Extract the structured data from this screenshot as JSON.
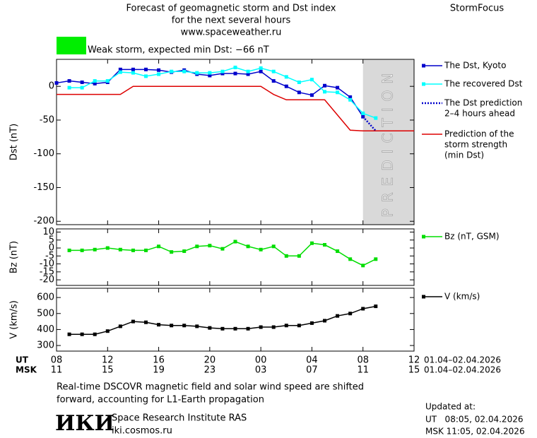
{
  "header": {
    "title_lines": [
      "Forecast of geomagnetic storm and Dst index",
      "for the next several hours",
      "www.spaceweather.ru"
    ],
    "brand": "StormFocus",
    "storm_label": "Weak storm, expected min Dst: −66 nT",
    "storm_color": "#00ee00"
  },
  "chart_data": [
    {
      "type": "line",
      "ylabel": "Dst (nT)",
      "xlim": [
        0,
        28
      ],
      "ylim": [
        -205,
        40
      ],
      "yticks": [
        0,
        -50,
        -100,
        -150,
        -200
      ],
      "shade": {
        "x": [
          24,
          28
        ],
        "label": "PREDICTION",
        "color": "#d9d9d9"
      },
      "series": [
        {
          "name": "The Dst, Kyoto",
          "color": "#0000cc",
          "marker": "square",
          "style": "solid",
          "x": [
            0,
            1,
            2,
            3,
            4,
            5,
            6,
            7,
            8,
            9,
            10,
            11,
            12,
            13,
            14,
            15,
            16,
            17,
            18,
            19,
            20,
            21,
            22,
            23,
            24
          ],
          "values": [
            5,
            8,
            6,
            4,
            6,
            25,
            25,
            25,
            24,
            21,
            24,
            18,
            16,
            19,
            19,
            18,
            22,
            8,
            0,
            -9,
            -13,
            1,
            -2,
            -16,
            -45
          ]
        },
        {
          "name": "The recovered Dst",
          "color": "#00ffff",
          "marker": "square",
          "style": "solid",
          "x": [
            1,
            2,
            3,
            4,
            5,
            6,
            7,
            8,
            9,
            10,
            11,
            12,
            13,
            14,
            15,
            16,
            17,
            18,
            19,
            20,
            21,
            22,
            23,
            24,
            25
          ],
          "values": [
            -2,
            -2,
            8,
            8,
            21,
            20,
            15,
            18,
            22,
            22,
            20,
            20,
            22,
            28,
            22,
            27,
            22,
            14,
            6,
            10,
            -8,
            -9,
            -20,
            -40,
            -47
          ]
        },
        {
          "name": [
            "The Dst prediction",
            "2–4 hours ahead"
          ],
          "color": "#0000cc",
          "marker": "none",
          "style": "dotted",
          "x": [
            24,
            25
          ],
          "values": [
            -45,
            -66
          ]
        },
        {
          "name": [
            "Prediction of the",
            "storm strength",
            "(min Dst)"
          ],
          "color": "#dd0000",
          "marker": "none",
          "style": "solid",
          "x": [
            0,
            5,
            6,
            16,
            17,
            18,
            21,
            23,
            24,
            28
          ],
          "values": [
            -12,
            -12,
            0,
            0,
            -12,
            -20,
            -20,
            -65,
            -66,
            -66
          ]
        }
      ]
    },
    {
      "type": "line",
      "ylabel": "Bz (nT)",
      "xlim": [
        0,
        28
      ],
      "ylim": [
        -23.5,
        12
      ],
      "yticks": [
        10,
        5,
        0,
        -5,
        -10,
        -15,
        -20
      ],
      "series": [
        {
          "name": "Bz (nT, GSM)",
          "color": "#00dd00",
          "marker": "square",
          "style": "solid",
          "x": [
            1,
            2,
            3,
            4,
            5,
            6,
            7,
            8,
            9,
            10,
            11,
            12,
            13,
            14,
            15,
            16,
            17,
            18,
            19,
            20,
            21,
            22,
            23,
            24,
            25
          ],
          "values": [
            -1.5,
            -1.5,
            -1,
            0,
            -1,
            -1.5,
            -1.5,
            1,
            -2.5,
            -2,
            1,
            1.5,
            -0.5,
            4,
            1,
            -1,
            1,
            -5,
            -5,
            3,
            2,
            -2,
            -7,
            -11,
            -7
          ]
        }
      ]
    },
    {
      "type": "line",
      "ylabel": "V (km/s)",
      "xlim": [
        0,
        28
      ],
      "ylim": [
        265,
        658
      ],
      "yticks": [
        300,
        400,
        500,
        600
      ],
      "xticks": [
        {
          "value": 0,
          "label": "08"
        },
        {
          "value": 4,
          "label": "12"
        },
        {
          "value": 8,
          "label": "16"
        },
        {
          "value": 12,
          "label": "20"
        },
        {
          "value": 16,
          "label": "00"
        },
        {
          "value": 20,
          "label": "04"
        },
        {
          "value": 24,
          "label": "08"
        },
        {
          "value": 28,
          "label": "12"
        }
      ],
      "xticks_msk": [
        {
          "value": 0,
          "label": "11"
        },
        {
          "value": 4,
          "label": "15"
        },
        {
          "value": 8,
          "label": "19"
        },
        {
          "value": 12,
          "label": "23"
        },
        {
          "value": 16,
          "label": "03"
        },
        {
          "value": 20,
          "label": "07"
        },
        {
          "value": 24,
          "label": "11"
        },
        {
          "value": 28,
          "label": "15"
        }
      ],
      "xlabel_ut": "UT",
      "xlabel_msk": "MSK",
      "date_range_ut": "01.04–02.04.2026",
      "date_range_msk": "01.04–02.04.2026",
      "series": [
        {
          "name": "V (km/s)",
          "color": "#000000",
          "marker": "square",
          "style": "solid",
          "x": [
            1,
            2,
            3,
            4,
            5,
            6,
            7,
            8,
            9,
            10,
            11,
            12,
            13,
            14,
            15,
            16,
            17,
            18,
            19,
            20,
            21,
            22,
            23,
            24,
            25
          ],
          "values": [
            370,
            370,
            370,
            390,
            420,
            450,
            445,
            430,
            425,
            425,
            420,
            410,
            405,
            405,
            405,
            415,
            415,
            425,
            425,
            440,
            455,
            485,
            500,
            530,
            545
          ]
        }
      ]
    }
  ],
  "footer": {
    "note_lines": [
      "Real-time DSCOVR magnetic field and solar wind speed are shifted",
      "forward, accounting for L1-Earth propagation"
    ],
    "logo": "ИКИ",
    "institute": "Space Research Institute RAS",
    "site": "iki.cosmos.ru",
    "updated_title": "Updated at:",
    "updated_ut": "UT   08:05, 02.04.2026",
    "updated_msk": "MSK 11:05, 02.04.2026"
  }
}
